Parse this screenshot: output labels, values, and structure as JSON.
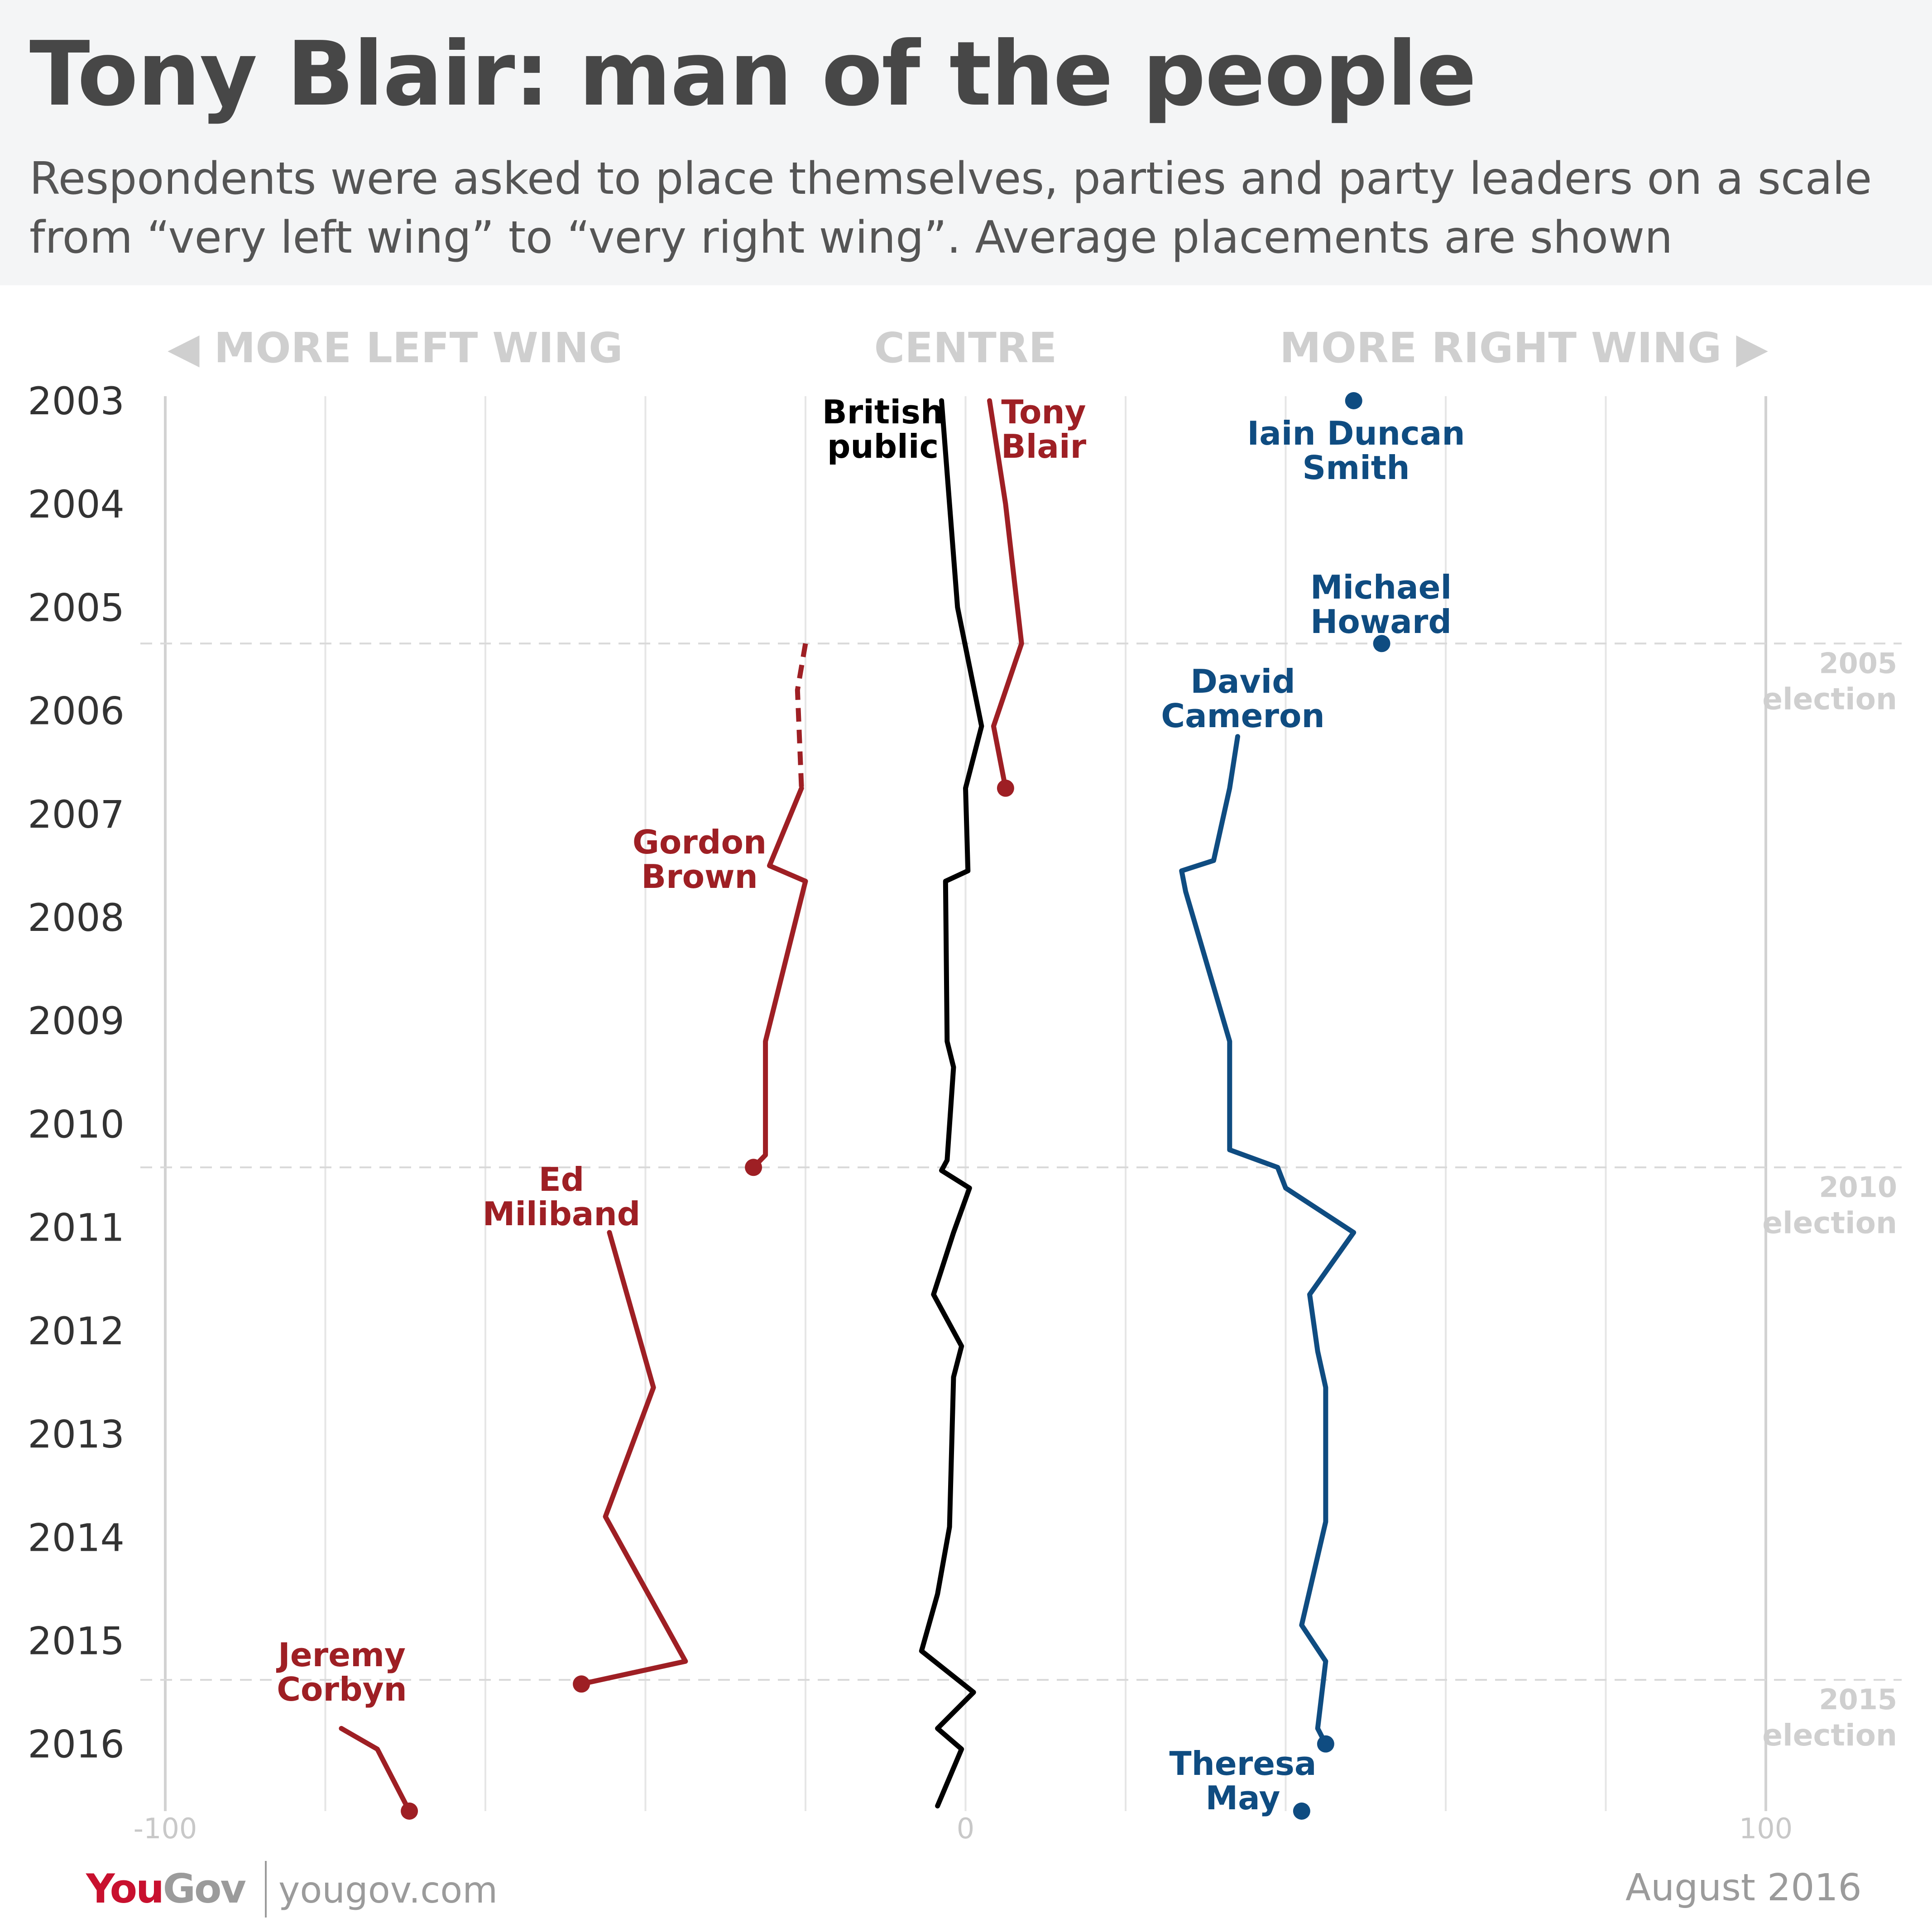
{
  "title": "Tony Blair: man of the people",
  "subtitle": "Respondents were asked to place themselves, parties and party leaders on a scale from “very left wing” to “very right wing”. Average placements are shown",
  "chart_data": {
    "type": "line",
    "orientation": "vertical-time",
    "direction_labels": {
      "left": "◀ MORE LEFT WING",
      "centre": "CENTRE",
      "right": "MORE RIGHT WING ▶"
    },
    "x_axis": {
      "range": [
        -100,
        100
      ],
      "gridlines": [
        -100,
        -80,
        -60,
        -40,
        -20,
        0,
        20,
        40,
        60,
        80,
        100
      ],
      "tick_labels": [
        -100,
        0,
        100
      ]
    },
    "y_axis": {
      "range": [
        2003.0,
        2016.65
      ],
      "tick_labels": [
        "2003",
        "2004",
        "2005",
        "2006",
        "2007",
        "2008",
        "2009",
        "2010",
        "2011",
        "2012",
        "2013",
        "2014",
        "2015",
        "2016"
      ],
      "reversed": true
    },
    "elections": [
      {
        "year": 2005.35,
        "label": [
          "2005",
          "election"
        ]
      },
      {
        "year": 2010.42,
        "label": [
          "2010",
          "election"
        ]
      },
      {
        "year": 2015.38,
        "label": [
          "2015",
          "election"
        ]
      }
    ],
    "series": [
      {
        "name": "British public",
        "label": [
          "British",
          "public"
        ],
        "color": "#000000",
        "points": [
          [
            -3,
            2003.0
          ],
          [
            -2,
            2004.0
          ],
          [
            -1,
            2005.0
          ],
          [
            2,
            2006.15
          ],
          [
            0,
            2006.75
          ],
          [
            0.3,
            2007.55
          ],
          [
            -2.5,
            2007.65
          ],
          [
            -2.3,
            2009.2
          ],
          [
            -1.5,
            2009.45
          ],
          [
            -2.3,
            2010.35
          ],
          [
            -3,
            2010.45
          ],
          [
            0.5,
            2010.62
          ],
          [
            -1.5,
            2011.05
          ],
          [
            -4,
            2011.65
          ],
          [
            -0.5,
            2012.15
          ],
          [
            -1.5,
            2012.45
          ],
          [
            -2,
            2013.9
          ],
          [
            -3.5,
            2014.55
          ],
          [
            -5.5,
            2015.1
          ],
          [
            1,
            2015.5
          ],
          [
            -3.5,
            2015.85
          ],
          [
            -0.5,
            2016.05
          ],
          [
            -3.5,
            2016.6
          ]
        ]
      },
      {
        "name": "Tony Blair",
        "label": [
          "Tony",
          "Blair"
        ],
        "color": "#9e1f24",
        "points": [
          [
            3,
            2003.0
          ],
          [
            5,
            2004.0
          ],
          [
            7,
            2005.35
          ],
          [
            3.5,
            2006.15
          ],
          [
            5,
            2006.75
          ]
        ]
      },
      {
        "name": "Gordon Brown",
        "label": [
          "Gordon",
          "Brown"
        ],
        "color": "#9e1f24",
        "dashed_points": [
          [
            -20,
            2005.35
          ],
          [
            -21,
            2005.8
          ],
          [
            -20.5,
            2006.75
          ]
        ],
        "points": [
          [
            -20.5,
            2006.75
          ],
          [
            -24.5,
            2007.5
          ],
          [
            -20,
            2007.65
          ],
          [
            -25,
            2009.2
          ],
          [
            -25,
            2010.3
          ],
          [
            -26.5,
            2010.42
          ]
        ]
      },
      {
        "name": "Ed Miliband",
        "label": [
          "Ed",
          "Miliband"
        ],
        "color": "#9e1f24",
        "points": [
          [
            -44.5,
            2011.05
          ],
          [
            -39,
            2012.55
          ],
          [
            -45,
            2013.8
          ],
          [
            -37.5,
            2014.85
          ],
          [
            -35,
            2015.2
          ],
          [
            -48,
            2015.42
          ]
        ]
      },
      {
        "name": "Jeremy Corbyn",
        "label": [
          "Jeremy",
          "Corbyn"
        ],
        "color": "#9e1f24",
        "points": [
          [
            -78,
            2015.85
          ],
          [
            -73.5,
            2016.05
          ],
          [
            -69.5,
            2016.65
          ]
        ]
      },
      {
        "name": "Iain Duncan Smith",
        "label": [
          "Iain Duncan",
          "Smith"
        ],
        "color": "#0f4c81",
        "points": [
          [
            48.5,
            2003.0
          ]
        ]
      },
      {
        "name": "Michael Howard",
        "label": [
          "Michael",
          "Howard"
        ],
        "color": "#0f4c81",
        "points": [
          [
            52,
            2005.35
          ]
        ]
      },
      {
        "name": "David Cameron",
        "label": [
          "David",
          "Cameron"
        ],
        "color": "#0f4c81",
        "points": [
          [
            34,
            2006.25
          ],
          [
            33,
            2006.75
          ],
          [
            31,
            2007.45
          ],
          [
            27,
            2007.55
          ],
          [
            27.5,
            2007.75
          ],
          [
            33,
            2009.2
          ],
          [
            33,
            2010.25
          ],
          [
            39,
            2010.42
          ],
          [
            40,
            2010.62
          ],
          [
            48.5,
            2011.05
          ],
          [
            43,
            2011.65
          ],
          [
            44,
            2012.2
          ],
          [
            45,
            2012.55
          ],
          [
            45,
            2013.85
          ],
          [
            42,
            2014.85
          ],
          [
            45,
            2015.2
          ],
          [
            44,
            2015.85
          ],
          [
            45,
            2016.0
          ]
        ]
      },
      {
        "name": "Theresa May",
        "label": [
          "Theresa",
          "May"
        ],
        "color": "#0f4c81",
        "points": [
          [
            42,
            2016.65
          ]
        ]
      }
    ]
  },
  "footer": {
    "brand_a": "You",
    "brand_b": "Gov",
    "url": "yougov.com",
    "date": "August 2016"
  }
}
